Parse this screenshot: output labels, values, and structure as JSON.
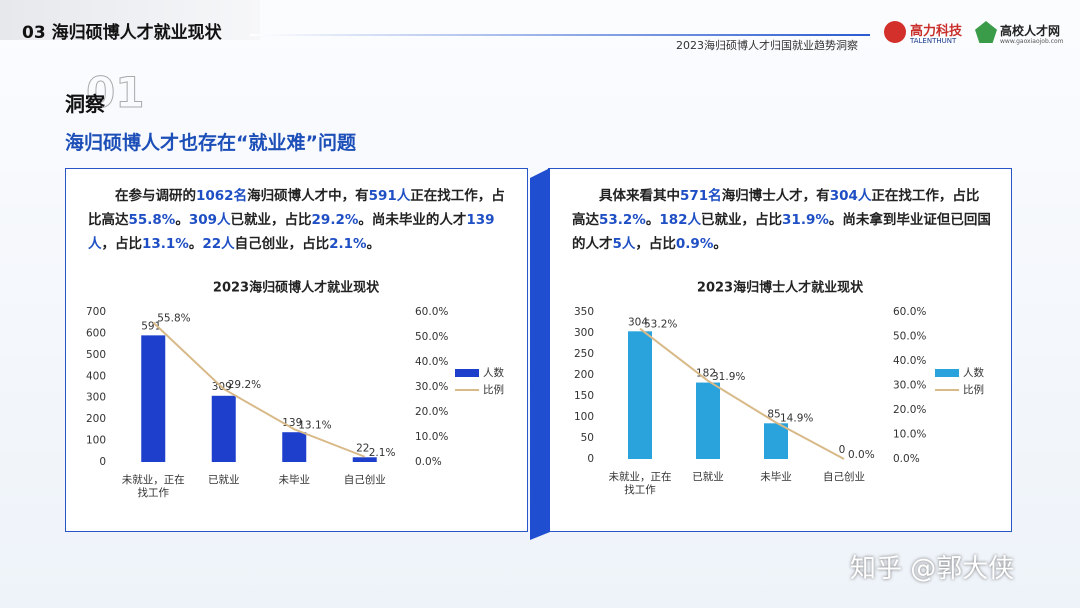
{
  "header": {
    "section": "03 海归硕博人才就业现状",
    "subtitle": "2023海归硕博人才归国就业趋势洞察",
    "logo_1": "高力科技",
    "logo_1_en": "TALENTHUNT",
    "logo_2": "高校人才网",
    "logo_2_url": "www.gaoxiaojob.com"
  },
  "heading": {
    "label": "洞察",
    "number": "01",
    "title": "海归硕博人才也存在“就业难”问题"
  },
  "panels": [
    {
      "paragraph": [
        {
          "text": "在参与调研的",
          "highlight": false
        },
        {
          "text": "1062名",
          "highlight": true
        },
        {
          "text": "海归硕博人才中，有",
          "highlight": false
        },
        {
          "text": "591人",
          "highlight": true
        },
        {
          "text": "正在找工作，占比高达",
          "highlight": false
        },
        {
          "text": "55.8%",
          "highlight": true
        },
        {
          "text": "。",
          "highlight": false
        },
        {
          "text": "309人",
          "highlight": true
        },
        {
          "text": "已就业，占比",
          "highlight": false
        },
        {
          "text": "29.2%",
          "highlight": true
        },
        {
          "text": "。尚未毕业的人才",
          "highlight": false
        },
        {
          "text": "139人",
          "highlight": true
        },
        {
          "text": "，占比",
          "highlight": false
        },
        {
          "text": "13.1%",
          "highlight": true
        },
        {
          "text": "。",
          "highlight": false
        },
        {
          "text": "22人",
          "highlight": true
        },
        {
          "text": "自己创业，占比",
          "highlight": false
        },
        {
          "text": "2.1%",
          "highlight": true
        },
        {
          "text": "。",
          "highlight": false
        }
      ]
    },
    {
      "paragraph": [
        {
          "text": "具体来看其中",
          "highlight": false
        },
        {
          "text": "571名",
          "highlight": true
        },
        {
          "text": "海归博士人才，有",
          "highlight": false
        },
        {
          "text": "304人",
          "highlight": true
        },
        {
          "text": "正在找工作，占比高达",
          "highlight": false
        },
        {
          "text": "53.2%",
          "highlight": true
        },
        {
          "text": "。",
          "highlight": false
        },
        {
          "text": "182人",
          "highlight": true
        },
        {
          "text": "已就业，占比",
          "highlight": false
        },
        {
          "text": "31.9%",
          "highlight": true
        },
        {
          "text": "。尚未拿到毕业证但已回国的人才",
          "highlight": false
        },
        {
          "text": "5人",
          "highlight": true
        },
        {
          "text": "，占比",
          "highlight": false
        },
        {
          "text": "0.9%",
          "highlight": true
        },
        {
          "text": "。",
          "highlight": false
        }
      ]
    }
  ],
  "chart_data": [
    {
      "type": "bar-line",
      "title": "2023海归硕博人才就业现状",
      "categories": [
        "未就业，正在找工作",
        "已就业",
        "未毕业",
        "自己创业"
      ],
      "series": [
        {
          "name": "人数",
          "type": "bar",
          "color": "#1e3fcc",
          "values": [
            591,
            309,
            139,
            22
          ]
        },
        {
          "name": "比例",
          "type": "line",
          "axis": "y2",
          "color": "#d8b988",
          "values": [
            55.8,
            29.2,
            13.1,
            2.1
          ],
          "value_labels": [
            "55.8%",
            "29.2%",
            "13.1%",
            "2.1%"
          ]
        }
      ],
      "ylim": [
        0,
        700
      ],
      "yticks": [
        0,
        100,
        200,
        300,
        400,
        500,
        600,
        700
      ],
      "y2lim": [
        0,
        60
      ],
      "y2ticks": [
        {
          "value": 0,
          "label": "0.0%"
        },
        {
          "value": 10,
          "label": "10.0%"
        },
        {
          "value": 20,
          "label": "20.0%"
        },
        {
          "value": 30,
          "label": "30.0%"
        },
        {
          "value": 40,
          "label": "40.0%"
        },
        {
          "value": 50,
          "label": "50.0%"
        },
        {
          "value": 60,
          "label": "60.0%"
        }
      ],
      "legend": "right"
    },
    {
      "type": "bar-line",
      "title": "2023海归博士人才就业现状",
      "categories": [
        "未就业，正在找工作",
        "已就业",
        "未毕业",
        "自己创业"
      ],
      "series": [
        {
          "name": "人数",
          "type": "bar",
          "color": "#2aa3dc",
          "values": [
            304,
            182,
            85,
            0
          ]
        },
        {
          "name": "比例",
          "type": "line",
          "axis": "y2",
          "color": "#d8b988",
          "values": [
            53.2,
            31.9,
            14.9,
            0.0
          ],
          "value_labels": [
            "53.2%",
            "31.9%",
            "14.9%",
            "0.0%"
          ]
        }
      ],
      "ylim": [
        0,
        350
      ],
      "yticks": [
        0,
        50,
        100,
        150,
        200,
        250,
        300,
        350
      ],
      "y2lim": [
        0,
        60
      ],
      "y2ticks": [
        {
          "value": 0,
          "label": "0.0%"
        },
        {
          "value": 10,
          "label": "10.0%"
        },
        {
          "value": 20,
          "label": "20.0%"
        },
        {
          "value": 30,
          "label": "30.0%"
        },
        {
          "value": 40,
          "label": "40.0%"
        },
        {
          "value": 50,
          "label": "50.0%"
        },
        {
          "value": 60,
          "label": "60.0%"
        }
      ],
      "legend": "right"
    }
  ],
  "watermark": "知乎 @郭大侠"
}
